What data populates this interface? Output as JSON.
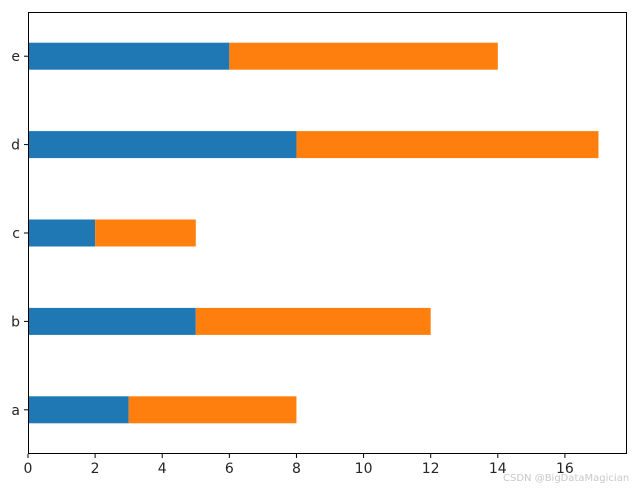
{
  "chart_data": {
    "type": "bar",
    "orientation": "horizontal",
    "stacked": true,
    "categories": [
      "a",
      "b",
      "c",
      "d",
      "e"
    ],
    "series": [
      {
        "values": [
          3,
          5,
          2,
          8,
          6
        ],
        "color": "#1f77b4"
      },
      {
        "values": [
          5,
          7,
          3,
          9,
          8
        ],
        "color": "#ff7f0e"
      }
    ],
    "xlim": [
      0,
      17.85
    ],
    "xticks": [
      0,
      2,
      4,
      6,
      8,
      10,
      12,
      14,
      16
    ],
    "grid": false,
    "legend": "none"
  },
  "watermark": "CSDN @BigDataMagician"
}
